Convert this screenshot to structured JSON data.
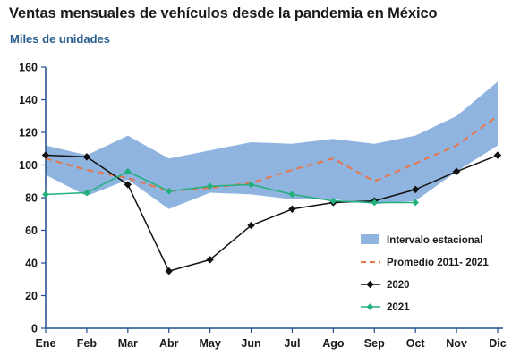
{
  "title": "Ventas mensuales de vehículos desde la pandemia en México",
  "subtitle": "Miles de unidades",
  "colors": {
    "band": "#8fb4e0",
    "promedio": "#e8744a",
    "s2020": "#111111",
    "s2021": "#22b07d",
    "axis": "#1f4e8c"
  },
  "chart_data": {
    "type": "line",
    "title": "Ventas mensuales de vehículos desde la pandemia en México",
    "ylabel": "Miles de unidades",
    "xlabel": "",
    "ylim": [
      0,
      160
    ],
    "yticks": [
      0,
      20,
      40,
      60,
      80,
      100,
      120,
      140,
      160
    ],
    "grid": false,
    "legend_position": "bottom-right",
    "categories": [
      "Ene",
      "Feb",
      "Mar",
      "Abr",
      "May",
      "Jun",
      "Jul",
      "Ago",
      "Sep",
      "Oct",
      "Nov",
      "Dic"
    ],
    "band": {
      "name": "Intervalo estacional",
      "lower": [
        94,
        81,
        91,
        73,
        83,
        82,
        79,
        79,
        76,
        78,
        96,
        112
      ],
      "upper": [
        112,
        106,
        118,
        104,
        109,
        114,
        113,
        116,
        113,
        118,
        130,
        151
      ]
    },
    "series": [
      {
        "name": "Promedio 2011- 2021",
        "style": "dashed",
        "values": [
          104,
          97,
          92,
          84,
          86,
          89,
          97,
          104,
          90,
          101,
          112,
          130
        ]
      },
      {
        "name": "2020",
        "style": "solid-diamond",
        "values": [
          106,
          105,
          88,
          35,
          42,
          63,
          73,
          77,
          78,
          85,
          96,
          106
        ]
      },
      {
        "name": "2021",
        "style": "solid-diamond",
        "values": [
          82,
          83,
          96,
          84,
          87,
          88,
          82,
          78,
          77,
          77,
          null,
          null
        ]
      }
    ]
  }
}
